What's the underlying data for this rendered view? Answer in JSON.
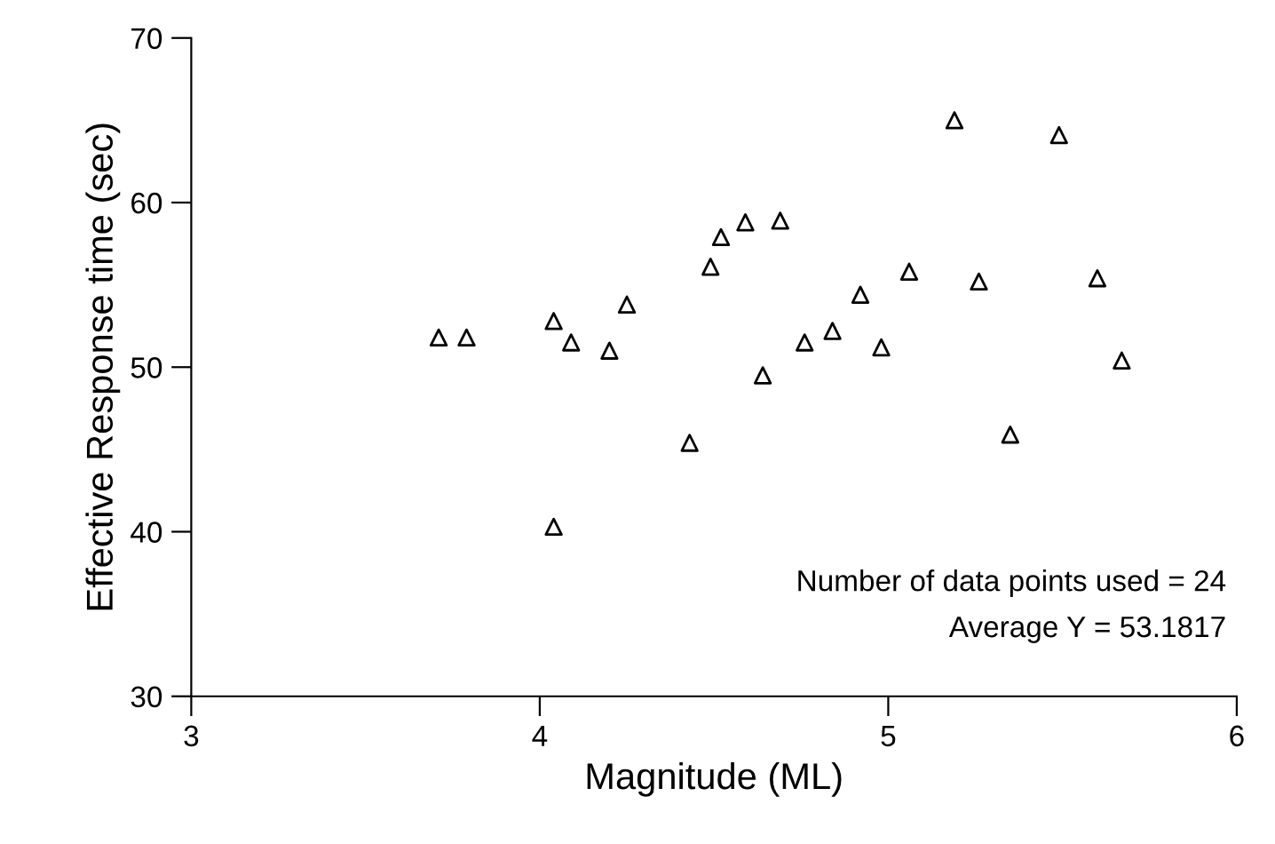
{
  "chart_data": {
    "type": "scatter",
    "xlabel": "Magnitude (ML)",
    "ylabel": "Effective Response time (sec)",
    "x": [
      3.71,
      3.79,
      4.04,
      4.04,
      4.09,
      4.2,
      4.25,
      4.43,
      4.49,
      4.52,
      4.59,
      4.64,
      4.69,
      4.76,
      4.84,
      4.92,
      4.98,
      5.06,
      5.19,
      5.26,
      5.35,
      5.49,
      5.6,
      5.67
    ],
    "values": [
      51.8,
      51.8,
      52.8,
      40.3,
      51.5,
      51.0,
      53.8,
      45.4,
      56.1,
      57.9,
      58.8,
      49.5,
      58.9,
      51.5,
      52.2,
      54.4,
      51.2,
      55.8,
      65.0,
      55.2,
      45.9,
      64.1,
      55.4,
      50.4
    ],
    "color": "#000000",
    "marker": "triangle",
    "xlim": [
      3,
      6
    ],
    "xticks": [
      3,
      4,
      5,
      6
    ],
    "ylim": [
      30,
      70
    ],
    "yticks": [
      30,
      40,
      50,
      60,
      70
    ],
    "grid": false,
    "annotations": [
      "Number of data points used = 24",
      "Average Y = 53.1817"
    ]
  }
}
